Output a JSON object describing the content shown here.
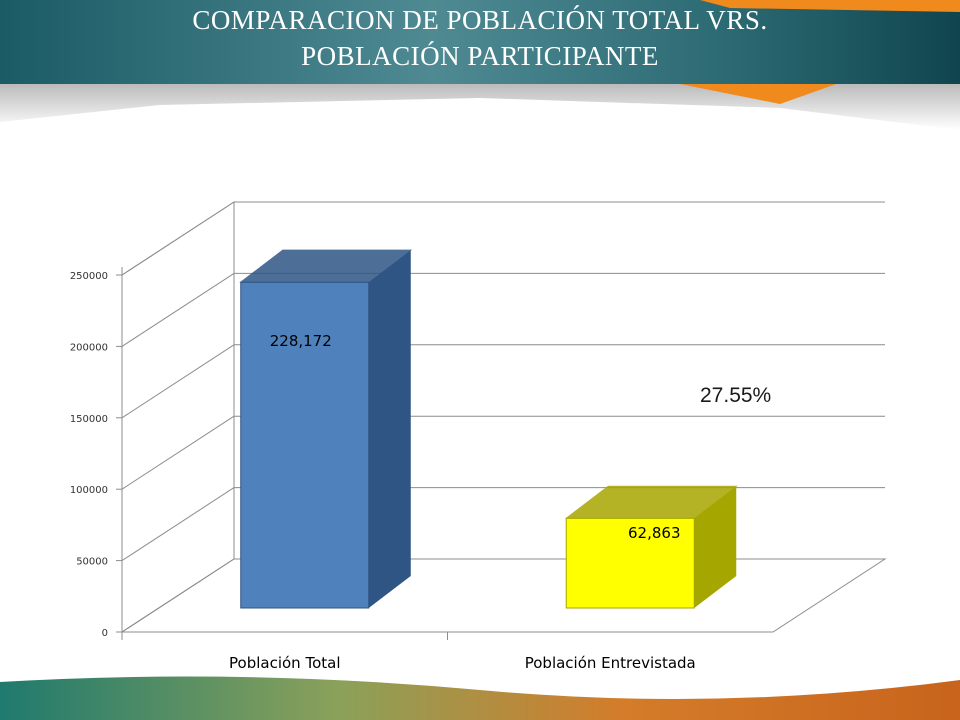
{
  "slide": {
    "title_line1": "COMPARACION DE POBLACIÓN TOTAL VRS.",
    "title_line2": "POBLACIÓN PARTICIPANTE"
  },
  "colors": {
    "header_teal": "#1a5a63",
    "header_orange": "#f08a1c",
    "bar_total": "#4f81bd",
    "bar_total_dark": "#2f5584",
    "bar_participant": "#ffff00",
    "bar_participant_dark": "#a6a600"
  },
  "annotation": {
    "percent": "27.55%"
  },
  "chart_data": {
    "type": "bar",
    "title": "",
    "xlabel": "",
    "ylabel": "",
    "categories": [
      "Población Total",
      "Población Entrevistada"
    ],
    "values": [
      228172,
      62863
    ],
    "data_labels": [
      "228,172",
      "62,863"
    ],
    "ylim": [
      0,
      250000
    ],
    "yticks": [
      0,
      50000,
      100000,
      150000,
      200000,
      250000
    ],
    "ytick_labels": [
      "0",
      "50000",
      "100000",
      "150000",
      "200000",
      "250000"
    ],
    "grid": true,
    "legend": "none",
    "style": "3d-column"
  }
}
